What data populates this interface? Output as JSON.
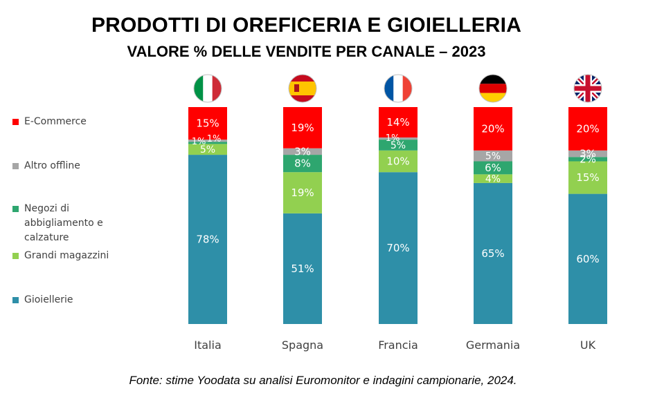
{
  "title": "PRODOTTI DI OREFICERIA E GIOIELLERIA",
  "subtitle": "VALORE % DELLE VENDITE PER CANALE – 2023",
  "source": "Fonte: stime Yoodata su analisi Euromonitor  e indagini campionarie, 2024.",
  "chart_data": {
    "type": "bar",
    "stacked": true,
    "categories": [
      "Italia",
      "Spagna",
      "Francia",
      "Germania",
      "UK"
    ],
    "series": [
      {
        "name": "Gioiellerie",
        "color": "#2E8FA8",
        "values": [
          78,
          51,
          70,
          65,
          60
        ],
        "labels": [
          "78%",
          "51%",
          "70%",
          "65%",
          "60%"
        ]
      },
      {
        "name": "Grandi magazzini",
        "color": "#92D050",
        "values": [
          5,
          19,
          10,
          4,
          15
        ],
        "labels": [
          "5%",
          "19%",
          "10%",
          "4%",
          "15%"
        ]
      },
      {
        "name": "Negozi di abbigliamento e calzature",
        "color": "#2EA66F",
        "values": [
          1,
          8,
          5,
          6,
          2
        ],
        "labels": [
          "1%",
          "8%",
          "5%",
          "6%",
          "2%"
        ]
      },
      {
        "name": "Altro offline",
        "color": "#A6A6A6",
        "values": [
          1,
          3,
          1,
          5,
          3
        ],
        "labels": [
          "1%",
          "3%",
          "1%",
          "5%",
          "3%"
        ]
      },
      {
        "name": "E-Commerce",
        "color": "#FF0000",
        "values": [
          15,
          19,
          14,
          20,
          20
        ],
        "labels": [
          "15%",
          "19%",
          "14%",
          "20%",
          "20%"
        ]
      }
    ],
    "legend_position": "left",
    "legend_order": [
      "E-Commerce",
      "Altro offline",
      "Negozi di abbigliamento e calzature",
      "Grandi magazzini",
      "Gioiellerie"
    ],
    "flags": [
      "italy-flag-icon",
      "spain-flag-icon",
      "france-flag-icon",
      "germany-flag-icon",
      "uk-flag-icon"
    ],
    "grid": false
  }
}
